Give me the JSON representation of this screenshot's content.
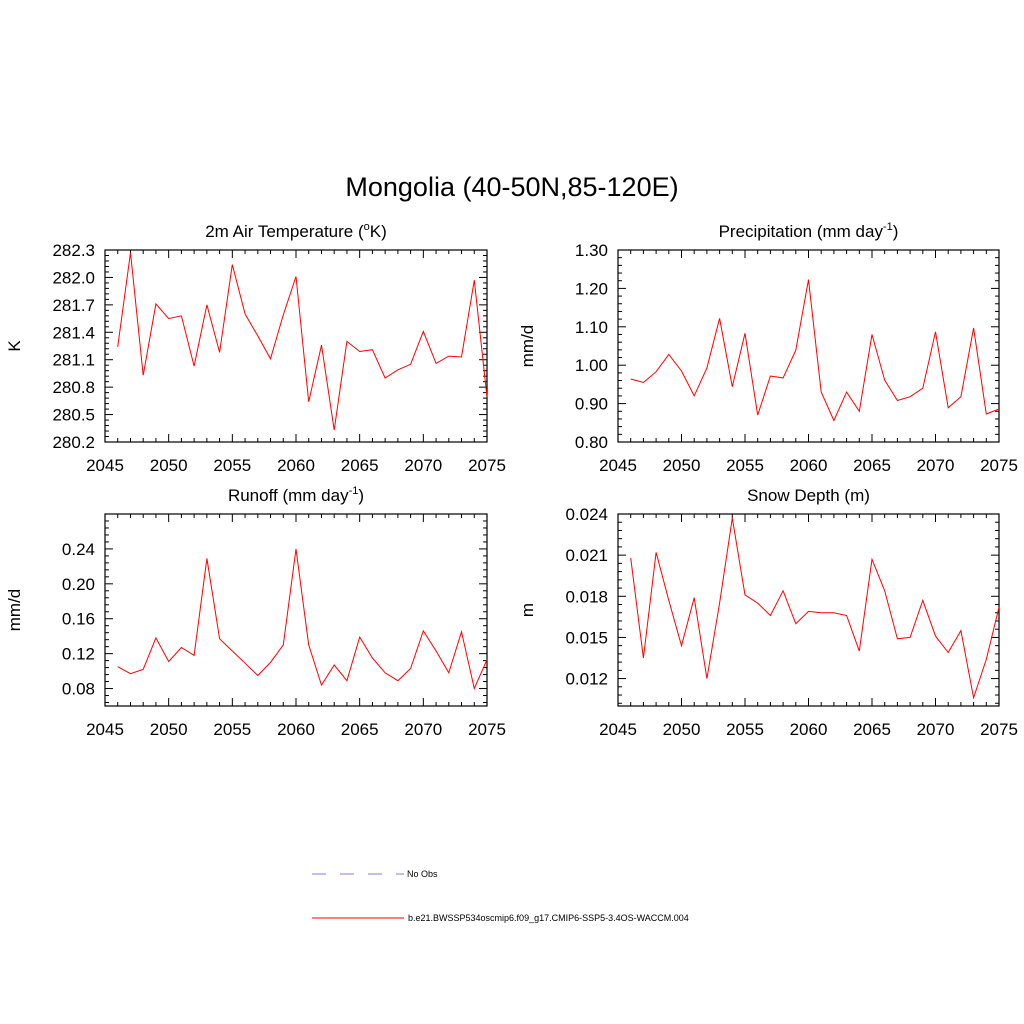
{
  "title": "Mongolia (40-50N,85-120E)",
  "colors": {
    "series": "#ff0000",
    "obs": "#9999dd",
    "axis": "#000000"
  },
  "legend": {
    "obs_label": "No Obs",
    "model_label": "b.e21.BWSSP534oscmip6.f09_g17.CMIP6-SSP5-3.4OS-WACCM.004"
  },
  "chart_data": [
    {
      "type": "line",
      "title_main": "2m Air Temperature (",
      "title_sup": "o",
      "title_end": "K)",
      "ylabel": "K",
      "xlim": [
        2045,
        2075
      ],
      "ylim": [
        280.2,
        282.3
      ],
      "xticks": [
        2045,
        2050,
        2055,
        2060,
        2065,
        2070,
        2075
      ],
      "xtick_labels": [
        "2045",
        "2050",
        "2055",
        "2060",
        "2065",
        "2070",
        "2075"
      ],
      "yticks": [
        280.2,
        280.5,
        280.8,
        281.1,
        281.4,
        281.7,
        282.0,
        282.3
      ],
      "ytick_labels": [
        "280.2",
        "280.5",
        "280.8",
        "281.1",
        "281.4",
        "281.7",
        "282.0",
        "282.3"
      ],
      "series": [
        {
          "name": "b.e21.BWSSP534oscmip6.f09_g17.CMIP6-SSP5-3.4OS-WACCM.004",
          "x": [
            2046,
            2047,
            2048,
            2049,
            2050,
            2051,
            2052,
            2053,
            2054,
            2055,
            2056,
            2057,
            2058,
            2059,
            2060,
            2061,
            2062,
            2063,
            2064,
            2065,
            2066,
            2067,
            2068,
            2069,
            2070,
            2071,
            2072,
            2073,
            2074,
            2075
          ],
          "values": [
            281.24,
            282.27,
            280.93,
            281.71,
            281.55,
            281.58,
            281.03,
            281.7,
            281.18,
            282.14,
            281.6,
            281.36,
            281.11,
            281.59,
            282.01,
            280.64,
            281.26,
            280.33,
            281.3,
            281.19,
            281.21,
            280.9,
            280.99,
            281.05,
            281.41,
            281.06,
            281.14,
            281.13,
            281.97,
            280.69
          ]
        }
      ]
    },
    {
      "type": "line",
      "title_main": "Precipitation (mm day",
      "title_sup": "-1",
      "title_end": ")",
      "ylabel": "mm/d",
      "xlim": [
        2045,
        2075
      ],
      "ylim": [
        0.8,
        1.3
      ],
      "xticks": [
        2045,
        2050,
        2055,
        2060,
        2065,
        2070,
        2075
      ],
      "xtick_labels": [
        "2045",
        "2050",
        "2055",
        "2060",
        "2065",
        "2070",
        "2075"
      ],
      "yticks": [
        0.8,
        0.9,
        1.0,
        1.1,
        1.2,
        1.3
      ],
      "ytick_labels": [
        "0.80",
        "0.90",
        "1.00",
        "1.10",
        "1.20",
        "1.30"
      ],
      "series": [
        {
          "name": "b.e21.BWSSP534oscmip6.f09_g17.CMIP6-SSP5-3.4OS-WACCM.004",
          "x": [
            2046,
            2047,
            2048,
            2049,
            2050,
            2051,
            2052,
            2053,
            2054,
            2055,
            2056,
            2057,
            2058,
            2059,
            2060,
            2061,
            2062,
            2063,
            2064,
            2065,
            2066,
            2067,
            2068,
            2069,
            2070,
            2071,
            2072,
            2073,
            2074,
            2075
          ],
          "values": [
            0.964,
            0.955,
            0.983,
            1.028,
            0.985,
            0.92,
            0.993,
            1.122,
            0.944,
            1.083,
            0.87,
            0.972,
            0.967,
            1.039,
            1.223,
            0.93,
            0.856,
            0.93,
            0.88,
            1.08,
            0.961,
            0.908,
            0.918,
            0.94,
            1.087,
            0.889,
            0.918,
            1.097,
            0.873,
            0.886
          ]
        }
      ]
    },
    {
      "type": "line",
      "title_main": "Runoff (mm day",
      "title_sup": "-1",
      "title_end": ")",
      "ylabel": "mm/d",
      "xlim": [
        2045,
        2075
      ],
      "ylim": [
        0.06,
        0.28
      ],
      "xticks": [
        2045,
        2050,
        2055,
        2060,
        2065,
        2070,
        2075
      ],
      "xtick_labels": [
        "2045",
        "2050",
        "2055",
        "2060",
        "2065",
        "2070",
        "2075"
      ],
      "yticks": [
        0.08,
        0.12,
        0.16,
        0.2,
        0.24
      ],
      "ytick_labels": [
        "0.08",
        "0.12",
        "0.16",
        "0.20",
        "0.24"
      ],
      "series": [
        {
          "name": "b.e21.BWSSP534oscmip6.f09_g17.CMIP6-SSP5-3.4OS-WACCM.004",
          "x": [
            2046,
            2047,
            2048,
            2049,
            2050,
            2051,
            2052,
            2053,
            2054,
            2055,
            2056,
            2057,
            2058,
            2059,
            2060,
            2061,
            2062,
            2063,
            2064,
            2065,
            2066,
            2067,
            2068,
            2069,
            2070,
            2071,
            2072,
            2073,
            2074,
            2075
          ],
          "values": [
            0.105,
            0.097,
            0.102,
            0.138,
            0.111,
            0.127,
            0.118,
            0.229,
            0.137,
            0.123,
            0.109,
            0.095,
            0.11,
            0.13,
            0.24,
            0.13,
            0.084,
            0.107,
            0.089,
            0.139,
            0.115,
            0.098,
            0.089,
            0.103,
            0.146,
            0.123,
            0.098,
            0.145,
            0.08,
            0.113
          ]
        }
      ]
    },
    {
      "type": "line",
      "title_main": "Snow Depth (m)",
      "title_sup": "",
      "title_end": "",
      "ylabel": "m",
      "xlim": [
        2045,
        2075
      ],
      "ylim": [
        0.01,
        0.024
      ],
      "xticks": [
        2045,
        2050,
        2055,
        2060,
        2065,
        2070,
        2075
      ],
      "xtick_labels": [
        "2045",
        "2050",
        "2055",
        "2060",
        "2065",
        "2070",
        "2075"
      ],
      "yticks": [
        0.012,
        0.015,
        0.018,
        0.021,
        0.024
      ],
      "ytick_labels": [
        "0.012",
        "0.015",
        "0.018",
        "0.021",
        "0.024"
      ],
      "series": [
        {
          "name": "b.e21.BWSSP534oscmip6.f09_g17.CMIP6-SSP5-3.4OS-WACCM.004",
          "x": [
            2046,
            2047,
            2048,
            2049,
            2050,
            2051,
            2052,
            2053,
            2054,
            2055,
            2056,
            2057,
            2058,
            2059,
            2060,
            2061,
            2062,
            2063,
            2064,
            2065,
            2066,
            2067,
            2068,
            2069,
            2070,
            2071,
            2072,
            2073,
            2074,
            2075
          ],
          "values": [
            0.0208,
            0.0135,
            0.0212,
            0.0177,
            0.0144,
            0.0179,
            0.012,
            0.0175,
            0.0237,
            0.0181,
            0.0175,
            0.0166,
            0.0184,
            0.016,
            0.0169,
            0.0168,
            0.0168,
            0.0166,
            0.014,
            0.0207,
            0.0184,
            0.0149,
            0.015,
            0.0177,
            0.0151,
            0.0139,
            0.0155,
            0.0106,
            0.0134,
            0.0172
          ]
        }
      ]
    }
  ]
}
